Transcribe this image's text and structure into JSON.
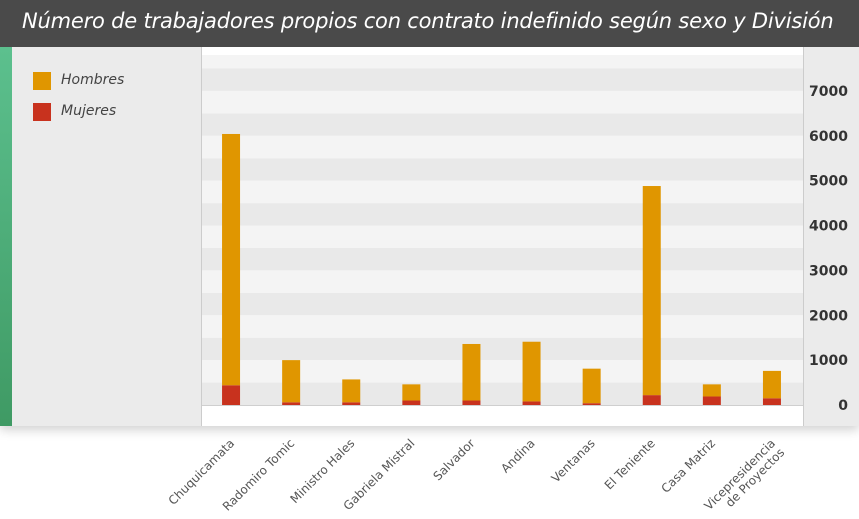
{
  "title": "Número de trabajadores propios con contrato indefinido según sexo y División",
  "legend": {
    "items": [
      {
        "label": "Hombres",
        "color": "#e09600"
      },
      {
        "label": "Mujeres",
        "color": "#c8321e"
      }
    ]
  },
  "chart_data": {
    "type": "bar",
    "stacked": true,
    "title": "Número de trabajadores propios con contrato indefinido según sexo y División",
    "categories": [
      "Chuquicamata",
      "Radomiro Tomic",
      "Ministro Hales",
      "Gabriela Mistral",
      "Salvador",
      "Andina",
      "Ventanas",
      "El Teniente",
      "Casa Matriz",
      "Vicepresidencia de Proyectos"
    ],
    "category_labels": [
      [
        "Chuquicamata"
      ],
      [
        "Radomiro Tomic"
      ],
      [
        "Ministro Hales"
      ],
      [
        "Gabriela Mistral"
      ],
      [
        "Salvador"
      ],
      [
        "Andina"
      ],
      [
        "Ventanas"
      ],
      [
        "El Teniente"
      ],
      [
        "Casa Matriz"
      ],
      [
        "Vicepresidencia",
        "de Proyectos"
      ]
    ],
    "series": [
      {
        "name": "Mujeres",
        "color": "#c8321e",
        "values": [
          440,
          60,
          60,
          100,
          100,
          80,
          40,
          220,
          190,
          150
        ]
      },
      {
        "name": "Hombres",
        "color": "#e09600",
        "values": [
          5600,
          940,
          510,
          360,
          1260,
          1330,
          770,
          4660,
          270,
          610
        ]
      }
    ],
    "ylim": [
      0,
      7800
    ],
    "yticks": [
      0,
      1000,
      2000,
      3000,
      4000,
      5000,
      6000,
      7000
    ],
    "y_axis_position": "right",
    "legend_position": "left",
    "grid": true,
    "xlabel": "",
    "ylabel": ""
  }
}
